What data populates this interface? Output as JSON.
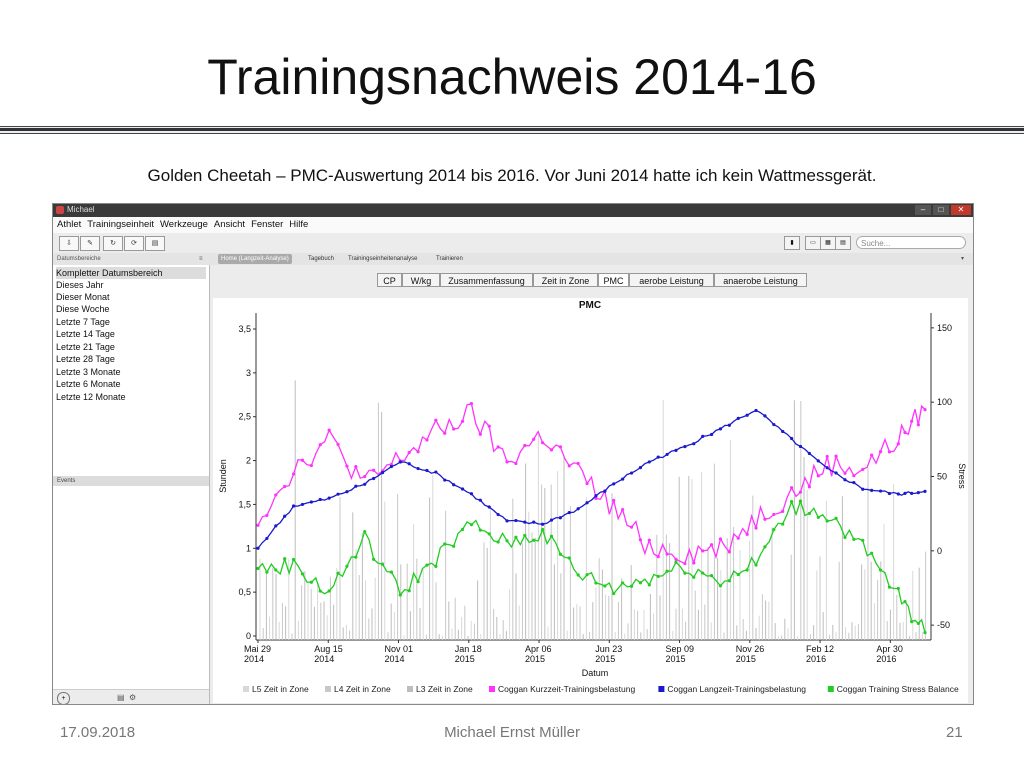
{
  "slide": {
    "title": "Trainingsnachweis 2014-16",
    "caption": "Golden Cheetah – PMC-Auswertung  2014 bis 2016. Vor Juni 2014 hatte ich kein Wattmessgerät.",
    "footer_date": "17.09.2018",
    "footer_author": "Michael Ernst Müller",
    "footer_page": "21"
  },
  "app": {
    "window_title": "Michael",
    "menu": [
      "Athlet",
      "Trainingseinheit",
      "Werkzeuge",
      "Ansicht",
      "Fenster",
      "Hilfe"
    ],
    "search_placeholder": "Suche...",
    "sidebar_header": "Datumsbereiche",
    "views": [
      "Home (Langzeit-Analyse)",
      "Tagebuch",
      "Trainingseinheitenanalyse",
      "Trainieren"
    ],
    "date_ranges": [
      "Kompletter Datumsbereich",
      "Dieses Jahr",
      "Dieser Monat",
      "Diese Woche",
      "Letzte 7 Tage",
      "Letzte 14 Tage",
      "Letzte 21 Tage",
      "Letzte 28 Tage",
      "Letzte 3 Monate",
      "Letzte 6 Monate",
      "Letzte 12 Monate"
    ],
    "events_label": "Events",
    "chart_tabs": [
      "CP",
      "W/kg",
      "Zusammenfassung",
      "Zeit in Zone",
      "PMC",
      "aerobe Leistung",
      "anaerobe Leistung"
    ],
    "active_chart_tab": "PMC"
  },
  "chart_data": {
    "type": "line",
    "title": "PMC",
    "xlabel": "Datum",
    "ylabel_left": "Stunden",
    "ylabel_right": "Stress",
    "ylim_left": [
      0,
      3.5
    ],
    "ylim_right": [
      -60,
      160
    ],
    "yticks_left": [
      "0",
      "0,5",
      "1",
      "1,5",
      "2",
      "2,5",
      "3",
      "3,5"
    ],
    "yticks_right": [
      "-50",
      "0",
      "50",
      "100",
      "150"
    ],
    "xticks": [
      [
        "Mai 29",
        "2014"
      ],
      [
        "Aug 15",
        "2014"
      ],
      [
        "Nov 01",
        "2014"
      ],
      [
        "Jan 18",
        "2015"
      ],
      [
        "Apr 06",
        "2015"
      ],
      [
        "Jun 23",
        "2015"
      ],
      [
        "Sep 09",
        "2015"
      ],
      [
        "Nov 26",
        "2015"
      ],
      [
        "Feb 12",
        "2016"
      ],
      [
        "Apr 30",
        "2016"
      ]
    ],
    "grid": false,
    "legend_position": "bottom",
    "series": [
      {
        "name": "L5 Zeit in Zone",
        "color": "#d8d8d8",
        "axis": "left"
      },
      {
        "name": "L4 Zeit in Zone",
        "color": "#c8c8c8",
        "axis": "left"
      },
      {
        "name": "L3 Zeit in Zone",
        "color": "#bdbdbd",
        "axis": "left"
      },
      {
        "name": "Coggan Kurzzeit-Trainingsbelastung",
        "color": "#ff33ff",
        "axis": "right",
        "x": [
          0,
          4,
          8,
          12,
          16,
          20,
          24,
          28,
          32,
          36,
          40,
          44,
          48,
          52,
          56,
          60,
          64,
          68,
          72,
          75
        ],
        "values": [
          22,
          55,
          75,
          45,
          62,
          80,
          92,
          60,
          78,
          52,
          28,
          3,
          -2,
          2,
          22,
          38,
          58,
          55,
          75,
          95
        ]
      },
      {
        "name": "Coggan Langzeit-Trainingsbelastung",
        "color": "#1a1acc",
        "axis": "right",
        "x": [
          0,
          4,
          8,
          12,
          16,
          20,
          24,
          28,
          32,
          36,
          40,
          44,
          48,
          52,
          56,
          60,
          64,
          68,
          72,
          75
        ],
        "values": [
          2,
          30,
          35,
          45,
          60,
          52,
          38,
          20,
          18,
          28,
          45,
          60,
          70,
          82,
          95,
          75,
          55,
          42,
          38,
          40
        ]
      },
      {
        "name": "Coggan Training Stress Balance",
        "color": "#22cc22",
        "axis": "right",
        "x": [
          0,
          4,
          8,
          12,
          16,
          20,
          24,
          28,
          32,
          36,
          40,
          44,
          48,
          52,
          56,
          60,
          64,
          68,
          72,
          75
        ],
        "values": [
          -12,
          -10,
          -28,
          8,
          -28,
          -5,
          18,
          5,
          12,
          -15,
          -25,
          -18,
          -10,
          -20,
          -8,
          30,
          25,
          2,
          -30,
          -55
        ]
      }
    ]
  }
}
